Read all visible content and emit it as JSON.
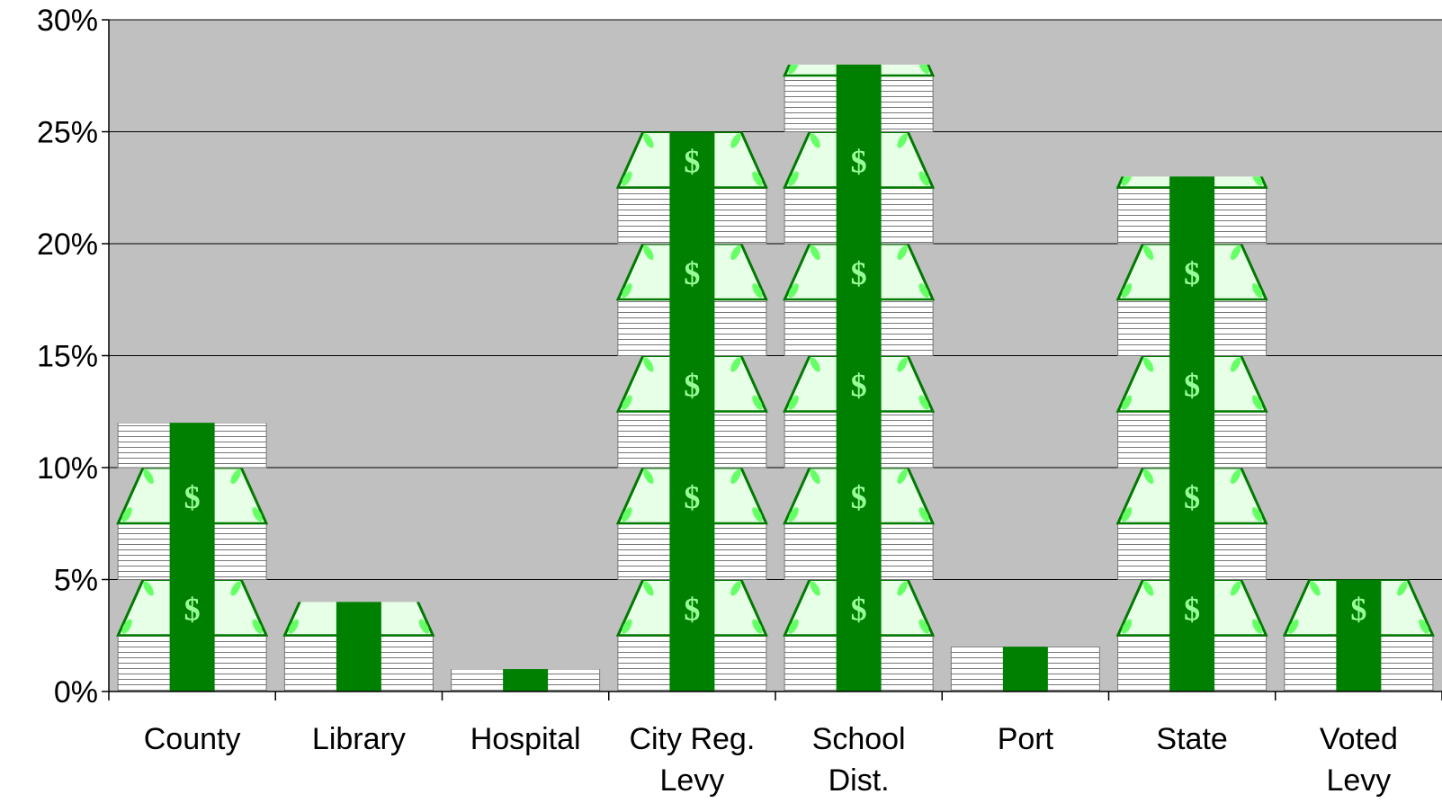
{
  "chart_data": {
    "type": "bar",
    "title": "",
    "xlabel": "",
    "ylabel": "",
    "categories": [
      [
        "County"
      ],
      [
        "Library"
      ],
      [
        "Hospital"
      ],
      [
        "City Reg.",
        "Levy"
      ],
      [
        "School",
        "Dist."
      ],
      [
        "Port"
      ],
      [
        "State"
      ],
      [
        "Voted",
        "Levy"
      ]
    ],
    "values": [
      12,
      4,
      1,
      25,
      28,
      2,
      23,
      5
    ],
    "ylim": [
      0,
      30
    ],
    "yticks": [
      {
        "value": 0,
        "label": "0%"
      },
      {
        "value": 5,
        "label": "5%"
      },
      {
        "value": 10,
        "label": "10%"
      },
      {
        "value": 15,
        "label": "15%"
      },
      {
        "value": 20,
        "label": "20%"
      },
      {
        "value": 25,
        "label": "25%"
      },
      {
        "value": 30,
        "label": "30%"
      }
    ],
    "grid": true,
    "legend": "none",
    "bar_style": "stacked-money-pictograph",
    "colors": {
      "plot_background": "#C0C0C0",
      "band": "#008000",
      "bill": "#E6FFE6",
      "bill_edge": "#007A00",
      "dollar_sign": "#99FF99",
      "paper": "#FFFFFF",
      "stack_lines": "#777777",
      "axis": "#000000"
    }
  }
}
